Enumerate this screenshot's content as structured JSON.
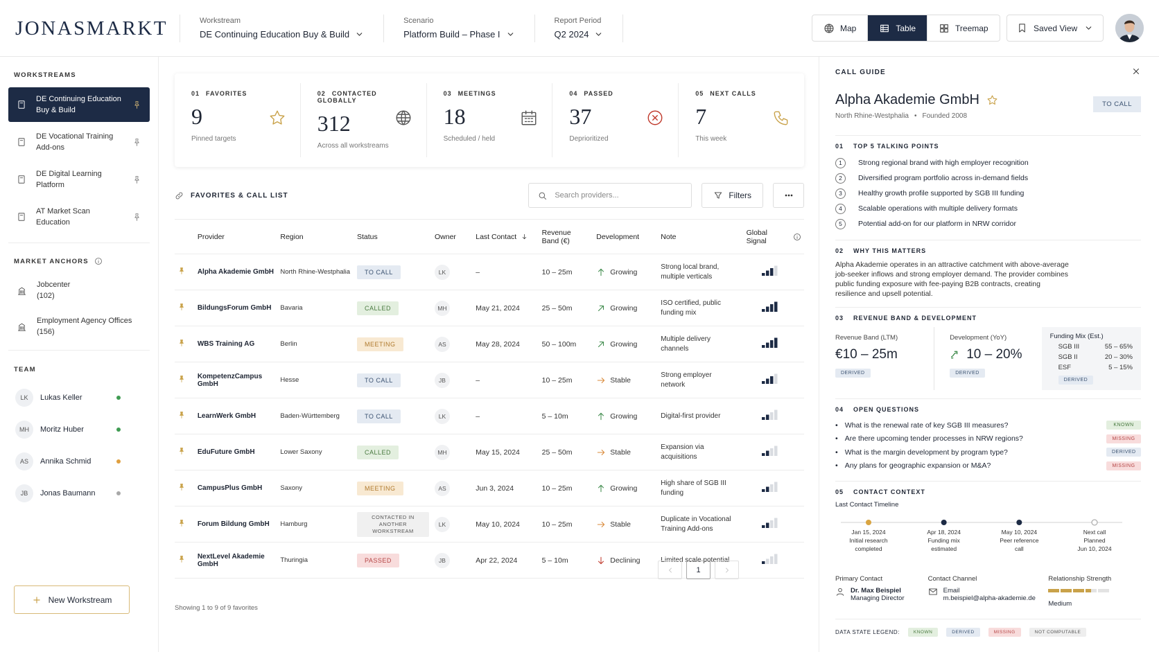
{
  "header": {
    "brand": "JONASMARKT",
    "filters": [
      {
        "label": "Workstream",
        "value": "DE Continuing Education Buy & Build"
      },
      {
        "label": "Scenario",
        "value": "Platform Build – Phase I"
      },
      {
        "label": "Report Period",
        "value": "Q2 2024"
      }
    ],
    "views": [
      "Map",
      "Table",
      "Treemap"
    ],
    "active_view": 1,
    "saved_view": "Saved View"
  },
  "sidebar": {
    "workstreams_title": "WORKSTREAMS",
    "workstreams": [
      "DE Continuing Education Buy & Build",
      "DE Vocational Training Add-ons",
      "DE Digital Learning Platform",
      "AT Market Scan Education"
    ],
    "active_workstream": 0,
    "anchors_title": "MARKET ANCHORS",
    "anchors": [
      {
        "name": "Jobcenter",
        "count": "(102)"
      },
      {
        "name": "Employment Agency Offices",
        "count": "(156)"
      }
    ],
    "team_title": "TEAM",
    "team": [
      {
        "initials": "LK",
        "name": "Lukas Keller",
        "color": "#3f9b52"
      },
      {
        "initials": "MH",
        "name": "Moritz Huber",
        "color": "#3f9b52"
      },
      {
        "initials": "AS",
        "name": "Annika Schmid",
        "color": "#e0a040"
      },
      {
        "initials": "JB",
        "name": "Jonas Baumann",
        "color": "#a8a8a8"
      }
    ],
    "new_button": "New Workstream"
  },
  "kpis": [
    {
      "num": "01",
      "label": "FAVORITES",
      "value": 9,
      "caption": "Pinned targets"
    },
    {
      "num": "02",
      "label": "CONTACTED GLOBALLY",
      "value": 312,
      "caption": "Across all workstreams"
    },
    {
      "num": "03",
      "label": "MEETINGS",
      "value": 18,
      "caption": "Scheduled / held"
    },
    {
      "num": "04",
      "label": "PASSED",
      "value": 37,
      "caption": "Deprioritized"
    },
    {
      "num": "05",
      "label": "NEXT CALLS",
      "value": 7,
      "caption": "This week"
    }
  ],
  "list": {
    "title": "FAVORITES & CALL LIST",
    "search_placeholder": "Search providers...",
    "filters": "Filters",
    "columns": [
      "Provider",
      "Region",
      "Status",
      "Owner",
      "Last Contact",
      "Revenue Band (€)",
      "Development",
      "Note",
      "Global Signal"
    ],
    "signal_max": 4,
    "rows": [
      {
        "provider": "Alpha Akademie GmbH",
        "region": "North Rhine-Westphalia",
        "status": "TO CALL",
        "tone": "blue",
        "owner": "LK",
        "last_contact": "–",
        "revenue": "10 – 25m",
        "trend": "up",
        "development": "Growing",
        "note": "Strong local brand, multiple verticals",
        "signal": 3
      },
      {
        "provider": "BildungsForum GmbH",
        "region": "Bavaria",
        "status": "CALLED",
        "tone": "green",
        "owner": "MH",
        "last_contact": "May 21, 2024",
        "revenue": "25 – 50m",
        "trend": "upright",
        "development": "Growing",
        "note": "ISO certified, public funding mix",
        "signal": 4
      },
      {
        "provider": "WBS Training AG",
        "region": "Berlin",
        "status": "MEETING",
        "tone": "orange",
        "owner": "AS",
        "last_contact": "May 28, 2024",
        "revenue": "50 – 100m",
        "trend": "upright",
        "development": "Growing",
        "note": "Multiple delivery channels",
        "signal": 4
      },
      {
        "provider": "KompetenzCampus GmbH",
        "region": "Hesse",
        "status": "TO CALL",
        "tone": "blue",
        "owner": "JB",
        "last_contact": "–",
        "revenue": "10 – 25m",
        "trend": "right",
        "development": "Stable",
        "note": "Strong employer network",
        "signal": 3
      },
      {
        "provider": "LearnWerk GmbH",
        "region": "Baden-Württemberg",
        "status": "TO CALL",
        "tone": "blue",
        "owner": "LK",
        "last_contact": "–",
        "revenue": "5 – 10m",
        "trend": "up",
        "development": "Growing",
        "note": "Digital-first provider",
        "signal": 2
      },
      {
        "provider": "EduFuture GmbH",
        "region": "Lower Saxony",
        "status": "CALLED",
        "tone": "green",
        "owner": "MH",
        "last_contact": "May 15, 2024",
        "revenue": "25 – 50m",
        "trend": "right",
        "development": "Stable",
        "note": "Expansion via acquisitions",
        "signal": 2
      },
      {
        "provider": "CampusPlus GmbH",
        "region": "Saxony",
        "status": "MEETING",
        "tone": "orange",
        "owner": "AS",
        "last_contact": "Jun 3, 2024",
        "revenue": "10 – 25m",
        "trend": "up",
        "development": "Growing",
        "note": "High share of SGB III funding",
        "signal": 2
      },
      {
        "provider": "Forum Bildung GmbH",
        "region": "Hamburg",
        "status": "CONTACTED IN ANOTHER WORKSTREAM",
        "tone": "gray",
        "owner": "LK",
        "last_contact": "May 10, 2024",
        "revenue": "10 – 25m",
        "trend": "right",
        "development": "Stable",
        "note": "Duplicate in Vocational Training Add-ons",
        "signal": 2
      },
      {
        "provider": "NextLevel Akademie GmbH",
        "region": "Thuringia",
        "status": "PASSED",
        "tone": "red",
        "owner": "JB",
        "last_contact": "Apr 22, 2024",
        "revenue": "5 – 10m",
        "trend": "down",
        "development": "Declining",
        "note": "Limited scale potential",
        "signal": 1
      }
    ],
    "footer": "Showing 1 to 9 of 9 favorites",
    "page": 1
  },
  "guide": {
    "title": "CALL GUIDE",
    "company": "Alpha Akademie GmbH",
    "region": "North Rhine-Westphalia",
    "founded": "Founded 2008",
    "status": "TO CALL",
    "talking": {
      "num": "01",
      "title": "TOP 5 TALKING POINTS",
      "items": [
        {
          "n": 1,
          "text": "Strong regional brand with high employer recognition"
        },
        {
          "n": 2,
          "text": "Diversified program portfolio across in-demand fields"
        },
        {
          "n": 3,
          "text": "Healthy growth profile supported by SGB III funding"
        },
        {
          "n": 4,
          "text": "Scalable operations with multiple delivery formats"
        },
        {
          "n": 5,
          "text": "Potential add-on for our platform in NRW corridor"
        }
      ]
    },
    "why": {
      "num": "02",
      "title": "WHY THIS MATTERS",
      "text": "Alpha Akademie operates in an attractive catchment with above-average job-seeker inflows and strong employer demand. The provider combines public funding exposure with fee-paying B2B contracts, creating resilience and upsell potential."
    },
    "revenue": {
      "num": "03",
      "title": "REVENUE BAND & DEVELOPMENT",
      "band_label": "Revenue Band (LTM)",
      "band": "€10 – 25m",
      "band_state": "DERIVED",
      "dev_label": "Development (YoY)",
      "dev": "10 – 20%",
      "dev_state": "DERIVED",
      "mix_title": "Funding Mix (Est.)",
      "mix": [
        {
          "name": "SGB III",
          "range": "55 – 65%"
        },
        {
          "name": "SGB II",
          "range": "20 – 30%"
        },
        {
          "name": "ESF",
          "range": "5 – 15%"
        }
      ],
      "mix_state": "DERIVED"
    },
    "questions": {
      "num": "04",
      "title": "OPEN QUESTIONS",
      "items": [
        {
          "text": "What is the renewal rate of key SGB III measures?",
          "state": "KNOWN",
          "tone": "green"
        },
        {
          "text": "Are there upcoming tender processes in NRW regions?",
          "state": "MISSING",
          "tone": "red"
        },
        {
          "text": "What is the margin development by program type?",
          "state": "DERIVED",
          "tone": "blue"
        },
        {
          "text": "Any plans for geographic expansion or M&A?",
          "state": "MISSING",
          "tone": "red"
        }
      ]
    },
    "contact": {
      "num": "05",
      "title": "CONTACT CONTEXT",
      "timeline_title": "Last Contact Timeline",
      "timeline": [
        {
          "lines": [
            "Jan 15, 2024",
            "Initial research",
            "completed"
          ],
          "state": "start"
        },
        {
          "lines": [
            "Apr 18, 2024",
            "Funding mix",
            "estimated"
          ],
          "state": "done"
        },
        {
          "lines": [
            "May 10, 2024",
            "Peer reference",
            "call"
          ],
          "state": "done"
        },
        {
          "lines": [
            "Next call",
            "Planned",
            "Jun 10, 2024"
          ],
          "state": "planned"
        }
      ],
      "primary_label": "Primary Contact",
      "person": "Dr. Max Beispiel",
      "role": "Managing Director",
      "channel_label": "Contact Channel",
      "channel": "Email",
      "email": "m.beispiel@alpha-akademie.de",
      "strength_label": "Relationship Strength",
      "strength": 3.5,
      "strength_segments": 5,
      "strength_text": "Medium"
    },
    "legend": {
      "title": "DATA STATE LEGEND:",
      "items": [
        {
          "label": "KNOWN",
          "tone": "green"
        },
        {
          "label": "DERIVED",
          "tone": "blue"
        },
        {
          "label": "MISSING",
          "tone": "red"
        },
        {
          "label": "NOT COMPUTABLE",
          "tone": "gray"
        }
      ]
    }
  }
}
